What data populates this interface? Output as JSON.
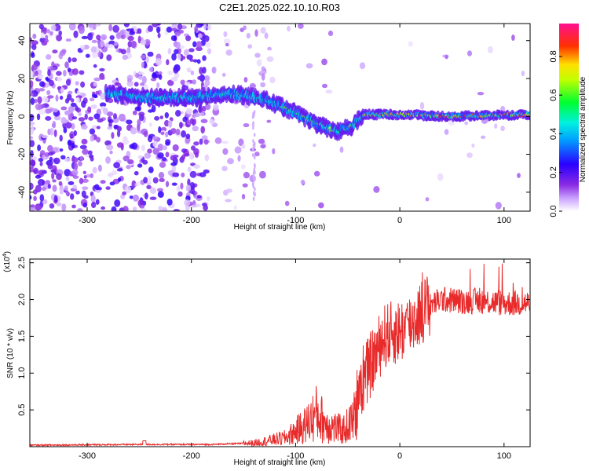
{
  "figure_title": "C2E1.2025.022.10.10.R03",
  "colors": {
    "snr_line": "#e82a2a",
    "frame": "#000000"
  },
  "chart_data": [
    {
      "type": "heatmap",
      "title": "C2E1.2025.022.10.10.R03",
      "xlabel": "Height of straight line (km)",
      "ylabel": "Frequency (Hz)",
      "xlim": [
        -355,
        125
      ],
      "ylim": [
        -50,
        49
      ],
      "xticks": [
        -300,
        -200,
        -100,
        0,
        100
      ],
      "yticks": [
        -40,
        -20,
        0,
        20,
        40
      ],
      "colorbar": {
        "label": "Normalized spectral amplitude",
        "range": [
          0,
          0.97
        ],
        "ticks": [
          0.0,
          0.2,
          0.4,
          0.6,
          0.8
        ],
        "tick_labels": [
          "0.0",
          "0.2",
          "0.4",
          "0.6",
          "0.8"
        ],
        "stops": [
          "#ffffff",
          "#9b30ff",
          "#3000ff",
          "#00c8ff",
          "#00ff40",
          "#ffff00",
          "#ff2000",
          "#ff1090"
        ]
      },
      "ridge": {
        "description_points": [
          {
            "x": -280,
            "y": 12
          },
          {
            "x": -240,
            "y": 10
          },
          {
            "x": -200,
            "y": 10
          },
          {
            "x": -160,
            "y": 12
          },
          {
            "x": -130,
            "y": 9
          },
          {
            "x": -100,
            "y": 2
          },
          {
            "x": -80,
            "y": -4
          },
          {
            "x": -60,
            "y": -8
          },
          {
            "x": -45,
            "y": -5
          },
          {
            "x": -35,
            "y": 1
          },
          {
            "x": 0,
            "y": 1
          },
          {
            "x": 50,
            "y": 0
          },
          {
            "x": 125,
            "y": 1
          }
        ]
      }
    },
    {
      "type": "line",
      "xlabel": "Height of straight line (km)",
      "ylabel": "SNR (10 * v/v)",
      "y_scale_note": "(x10^4)",
      "y_scale_base": "(x10",
      "y_scale_exp": "4",
      "y_scale_close": ")",
      "xlim": [
        -355,
        125
      ],
      "ylim": [
        0,
        2.55
      ],
      "xticks": [
        -300,
        -200,
        -100,
        0,
        100
      ],
      "yticks": [
        0.5,
        1.0,
        1.5,
        2.0,
        2.5
      ],
      "ytick_labels": [
        "0.5",
        "1.0",
        "1.5",
        "2.0",
        "2.5"
      ],
      "series": [
        {
          "name": "SNR",
          "envelope": [
            {
              "x": -355,
              "y": 0.02
            },
            {
              "x": -250,
              "y": 0.03
            },
            {
              "x": -180,
              "y": 0.03
            },
            {
              "x": -140,
              "y": 0.05
            },
            {
              "x": -110,
              "y": 0.12
            },
            {
              "x": -90,
              "y": 0.3
            },
            {
              "x": -80,
              "y": 0.45
            },
            {
              "x": -70,
              "y": 0.3
            },
            {
              "x": -55,
              "y": 0.22
            },
            {
              "x": -45,
              "y": 0.35
            },
            {
              "x": -35,
              "y": 0.9
            },
            {
              "x": -25,
              "y": 1.2
            },
            {
              "x": -15,
              "y": 1.5
            },
            {
              "x": -5,
              "y": 1.55
            },
            {
              "x": 5,
              "y": 1.6
            },
            {
              "x": 15,
              "y": 1.75
            },
            {
              "x": 25,
              "y": 1.9
            },
            {
              "x": 40,
              "y": 2.0
            },
            {
              "x": 60,
              "y": 1.98
            },
            {
              "x": 80,
              "y": 1.98
            },
            {
              "x": 100,
              "y": 1.95
            },
            {
              "x": 125,
              "y": 1.95
            }
          ]
        }
      ]
    }
  ]
}
